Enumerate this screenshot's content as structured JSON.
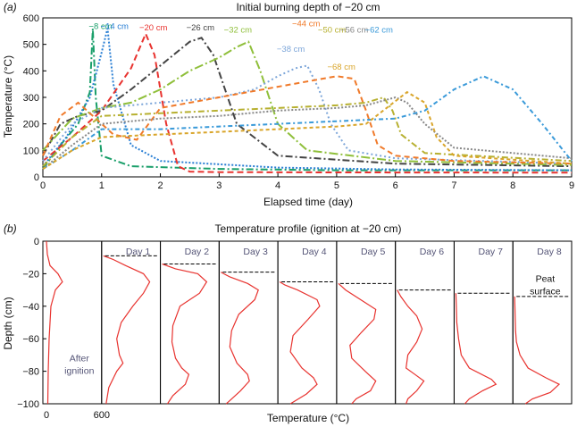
{
  "chart_data": [
    {
      "type": "line",
      "panel_label": "(a)",
      "title": "Initial burning depth of −20 cm",
      "xlabel": "Elapsed time (day)",
      "ylabel": "Temperature (°C)",
      "xlim": [
        0,
        9
      ],
      "ylim": [
        0,
        600
      ],
      "xticks": [
        "0",
        "1",
        "2",
        "3",
        "4",
        "5",
        "6",
        "7",
        "8",
        "9"
      ],
      "yticks": [
        "0",
        "100",
        "200",
        "300",
        "400",
        "500",
        "600"
      ],
      "grid": false,
      "series": [
        {
          "name": "−8 cm",
          "color": "#1a9f6a",
          "dash": "8,3,2,3",
          "x": [
            0,
            0.3,
            0.6,
            0.8,
            0.85,
            0.9,
            1.0,
            1.5,
            3,
            5,
            7,
            9
          ],
          "y": [
            30,
            120,
            200,
            320,
            560,
            300,
            80,
            40,
            30,
            25,
            25,
            25
          ]
        },
        {
          "name": "−14 cm",
          "color": "#2a7fd4",
          "dash": "2,2",
          "x": [
            0,
            0.4,
            0.8,
            1.0,
            1.1,
            1.2,
            1.5,
            2,
            4,
            6,
            8,
            9
          ],
          "y": [
            40,
            150,
            300,
            470,
            560,
            350,
            120,
            60,
            35,
            28,
            26,
            25
          ]
        },
        {
          "name": "−20 cm",
          "color": "#e8332f",
          "dash": "7,4",
          "x": [
            0,
            0.5,
            1.0,
            1.5,
            1.75,
            1.9,
            2.1,
            2.3,
            2.5,
            3,
            5,
            9
          ],
          "y": [
            60,
            150,
            250,
            410,
            540,
            460,
            200,
            40,
            20,
            18,
            17,
            16
          ]
        },
        {
          "name": "−26 cm",
          "color": "#444444",
          "dash": "8,3,2,3",
          "x": [
            0,
            0.3,
            0.6,
            1.0,
            1.5,
            2.0,
            2.5,
            2.7,
            2.9,
            3.3,
            4,
            6,
            9
          ],
          "y": [
            80,
            200,
            230,
            250,
            330,
            420,
            510,
            525,
            460,
            200,
            80,
            50,
            40
          ]
        },
        {
          "name": "−32 cm",
          "color": "#8fbf3a",
          "dash": "10,3,2,3",
          "x": [
            0,
            0.5,
            1.0,
            1.5,
            2.0,
            2.5,
            3.0,
            3.3,
            3.5,
            3.7,
            4.0,
            4.5,
            6,
            9
          ],
          "y": [
            100,
            220,
            260,
            280,
            330,
            400,
            450,
            490,
            510,
            400,
            200,
            100,
            60,
            45
          ]
        },
        {
          "name": "−38 cm",
          "color": "#7da6d9",
          "dash": "2,3",
          "x": [
            0,
            0.5,
            1.0,
            2,
            3,
            3.6,
            4.0,
            4.3,
            4.5,
            4.7,
            4.9,
            5.2,
            6,
            9
          ],
          "y": [
            60,
            200,
            260,
            280,
            300,
            330,
            380,
            410,
            420,
            330,
            200,
            100,
            70,
            50
          ]
        },
        {
          "name": "−44 cm",
          "color": "#f07a2a",
          "dash": "6,4",
          "x": [
            0,
            0.3,
            0.6,
            1.2,
            1.6,
            2,
            3,
            4,
            5,
            5.3,
            5.5,
            5.7,
            6,
            7,
            9
          ],
          "y": [
            80,
            230,
            280,
            160,
            140,
            260,
            300,
            340,
            380,
            370,
            250,
            120,
            80,
            60,
            50
          ]
        },
        {
          "name": "−50 cm",
          "color": "#b7b030",
          "dash": "7,3,2,3",
          "x": [
            0,
            0.5,
            1,
            2,
            3,
            4,
            5,
            5.5,
            5.8,
            5.95,
            6.1,
            6.5,
            9
          ],
          "y": [
            40,
            150,
            230,
            240,
            250,
            260,
            270,
            280,
            300,
            250,
            160,
            90,
            60
          ]
        },
        {
          "name": "−56 cm",
          "color": "#888888",
          "dash": "2,2",
          "x": [
            0,
            0.5,
            1,
            2,
            3,
            4,
            5,
            5.5,
            6,
            6.2,
            6.5,
            7,
            9
          ],
          "y": [
            30,
            120,
            200,
            220,
            230,
            250,
            260,
            270,
            300,
            280,
            200,
            110,
            70
          ]
        },
        {
          "name": "−62 cm",
          "color": "#3a9ad9",
          "dash": "5,3,2,3",
          "x": [
            0,
            0.5,
            1,
            2,
            3,
            4,
            5,
            6,
            6.5,
            7,
            7.5,
            8,
            8.5,
            9
          ],
          "y": [
            30,
            100,
            180,
            180,
            190,
            200,
            210,
            220,
            250,
            330,
            380,
            330,
            200,
            60
          ]
        },
        {
          "name": "−68 cm",
          "color": "#d9a52a",
          "dash": "4,3",
          "x": [
            0,
            0.5,
            1,
            2,
            3,
            4,
            5,
            5.5,
            6.2,
            6.5,
            6.7,
            7,
            9
          ],
          "y": [
            30,
            100,
            150,
            160,
            170,
            180,
            190,
            200,
            320,
            280,
            150,
            80,
            50
          ]
        }
      ]
    },
    {
      "type": "line",
      "panel_label": "(b)",
      "title": "Temperature profile (ignition at −20 cm)",
      "xlabel": "Temperature (°C)",
      "ylabel": "Depth (cm)",
      "xlim": [
        0,
        600
      ],
      "ylim": [
        -100,
        0
      ],
      "xticks": [
        "0",
        "600"
      ],
      "yticks": [
        "0",
        "−20",
        "−40",
        "−60",
        "−80",
        "−100"
      ],
      "panels": [
        {
          "label": "",
          "annotation": "After ignition",
          "surface_depth": null,
          "profile": [
            [
              20,
              0
            ],
            [
              30,
              -8
            ],
            [
              60,
              -15
            ],
            [
              150,
              -20
            ],
            [
              200,
              -25
            ],
            [
              120,
              -30
            ],
            [
              70,
              -40
            ],
            [
              50,
              -60
            ],
            [
              40,
              -80
            ],
            [
              35,
              -100
            ]
          ]
        },
        {
          "label": "Day 1",
          "annotation": "",
          "surface_depth": -9,
          "profile": [
            [
              0,
              -9
            ],
            [
              100,
              -11
            ],
            [
              250,
              -15
            ],
            [
              450,
              -20
            ],
            [
              520,
              -25
            ],
            [
              450,
              -32
            ],
            [
              330,
              -40
            ],
            [
              200,
              -50
            ],
            [
              150,
              -60
            ],
            [
              180,
              -70
            ],
            [
              220,
              -75
            ],
            [
              150,
              -80
            ],
            [
              60,
              -90
            ],
            [
              30,
              -100
            ]
          ]
        },
        {
          "label": "Day 2",
          "annotation": "",
          "surface_depth": -14,
          "profile": [
            [
              0,
              -14
            ],
            [
              150,
              -17
            ],
            [
              400,
              -20
            ],
            [
              500,
              -25
            ],
            [
              420,
              -32
            ],
            [
              200,
              -40
            ],
            [
              120,
              -52
            ],
            [
              110,
              -62
            ],
            [
              150,
              -72
            ],
            [
              220,
              -78
            ],
            [
              300,
              -82
            ],
            [
              260,
              -88
            ],
            [
              120,
              -95
            ],
            [
              60,
              -100
            ]
          ]
        },
        {
          "label": "Day 3",
          "annotation": "",
          "surface_depth": -19,
          "profile": [
            [
              0,
              -19
            ],
            [
              100,
              -22
            ],
            [
              300,
              -26
            ],
            [
              420,
              -30
            ],
            [
              380,
              -36
            ],
            [
              200,
              -45
            ],
            [
              120,
              -55
            ],
            [
              100,
              -65
            ],
            [
              180,
              -75
            ],
            [
              300,
              -82
            ],
            [
              320,
              -86
            ],
            [
              220,
              -92
            ],
            [
              100,
              -98
            ],
            [
              60,
              -100
            ]
          ]
        },
        {
          "label": "Day 4",
          "annotation": "",
          "surface_depth": -25,
          "profile": [
            [
              0,
              -25
            ],
            [
              60,
              -27
            ],
            [
              200,
              -30
            ],
            [
              420,
              -36
            ],
            [
              450,
              -40
            ],
            [
              320,
              -48
            ],
            [
              150,
              -58
            ],
            [
              120,
              -68
            ],
            [
              250,
              -78
            ],
            [
              380,
              -84
            ],
            [
              420,
              -88
            ],
            [
              300,
              -94
            ],
            [
              120,
              -100
            ]
          ]
        },
        {
          "label": "Day 5",
          "annotation": "",
          "surface_depth": -26,
          "profile": [
            [
              0,
              -26
            ],
            [
              80,
              -30
            ],
            [
              250,
              -36
            ],
            [
              420,
              -42
            ],
            [
              400,
              -48
            ],
            [
              260,
              -56
            ],
            [
              130,
              -64
            ],
            [
              150,
              -72
            ],
            [
              300,
              -80
            ],
            [
              420,
              -86
            ],
            [
              360,
              -92
            ],
            [
              200,
              -97
            ],
            [
              150,
              -100
            ]
          ]
        },
        {
          "label": "Day 6",
          "annotation": "",
          "surface_depth": -30,
          "profile": [
            [
              0,
              -30
            ],
            [
              40,
              -34
            ],
            [
              120,
              -40
            ],
            [
              220,
              -46
            ],
            [
              280,
              -54
            ],
            [
              220,
              -62
            ],
            [
              120,
              -70
            ],
            [
              100,
              -78
            ],
            [
              200,
              -82
            ],
            [
              300,
              -86
            ],
            [
              220,
              -92
            ],
            [
              120,
              -97
            ],
            [
              100,
              -100
            ]
          ]
        },
        {
          "label": "Day 7",
          "annotation": "",
          "surface_depth": -32,
          "profile": [
            [
              0,
              -32
            ],
            [
              5,
              -40
            ],
            [
              10,
              -50
            ],
            [
              30,
              -60
            ],
            [
              60,
              -70
            ],
            [
              150,
              -78
            ],
            [
              400,
              -85
            ],
            [
              450,
              -88
            ],
            [
              300,
              -92
            ],
            [
              150,
              -97
            ],
            [
              100,
              -100
            ]
          ]
        },
        {
          "label": "Day 8",
          "annotation": "Peat surface",
          "surface_depth": -34,
          "profile": [
            [
              0,
              -34
            ],
            [
              5,
              -45
            ],
            [
              10,
              -55
            ],
            [
              20,
              -62
            ],
            [
              60,
              -70
            ],
            [
              150,
              -78
            ],
            [
              350,
              -84
            ],
            [
              500,
              -88
            ],
            [
              400,
              -93
            ],
            [
              200,
              -97
            ],
            [
              120,
              -100
            ]
          ]
        }
      ]
    }
  ]
}
